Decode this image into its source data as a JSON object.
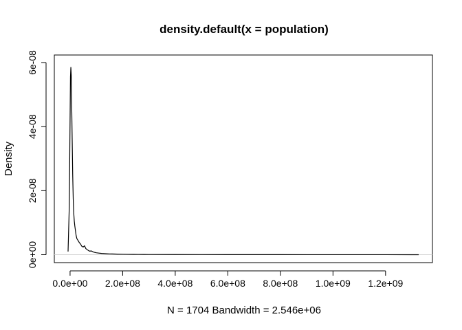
{
  "chart_data": {
    "type": "line",
    "title": "density.default(x = population)",
    "xlabel": "N = 1704   Bandwidth = 2.546e+06",
    "ylabel": "Density",
    "xlim": [
      -7637000,
      1326000000
    ],
    "ylim": [
      0,
      6e-08
    ],
    "x_ticks": [
      {
        "value": 0,
        "label": "0.0e+00"
      },
      {
        "value": 200000000,
        "label": "2.0e+08"
      },
      {
        "value": 400000000,
        "label": "4.0e+08"
      },
      {
        "value": 600000000,
        "label": "6.0e+08"
      },
      {
        "value": 800000000,
        "label": "8.0e+08"
      },
      {
        "value": 1000000000,
        "label": "1.0e+09"
      },
      {
        "value": 1200000000,
        "label": "1.2e+09"
      }
    ],
    "y_ticks": [
      {
        "value": 0,
        "label": "0e+00"
      },
      {
        "value": 2e-08,
        "label": "2e-08"
      },
      {
        "value": 4e-08,
        "label": "4e-08"
      },
      {
        "value": 6e-08,
        "label": "6e-08"
      }
    ],
    "series": [
      {
        "x": [
          -7637000,
          -3000000,
          0,
          1500000,
          3000000,
          4500000,
          6000000,
          8000000,
          10000000,
          12000000,
          14000000,
          16000000,
          18000000,
          20000000,
          23000000,
          26000000,
          30000000,
          35000000,
          40000000,
          45000000,
          50000000,
          55000000,
          60000000,
          65000000,
          70000000,
          75000000,
          80000000,
          90000000,
          100000000,
          110000000,
          120000000,
          130000000,
          140000000,
          150000000,
          160000000,
          180000000,
          200000000,
          220000000,
          240000000,
          260000000,
          280000000,
          300000000,
          400000000,
          500000000,
          600000000,
          700000000,
          800000000,
          900000000,
          1000000000,
          1100000000,
          1200000000,
          1300000000,
          1326000000
        ],
        "y": [
          1e-09,
          1.5e-08,
          4.2e-08,
          5.55e-08,
          5.85e-08,
          5.6e-08,
          4.8e-08,
          3.6e-08,
          2.5e-08,
          1.75e-08,
          1.3e-08,
          1.05e-08,
          9e-09,
          7.8e-09,
          6e-09,
          5e-09,
          4.5e-09,
          3.8e-09,
          3.3e-09,
          2.6e-09,
          2.4e-09,
          2.8e-09,
          1.9e-09,
          1.6e-09,
          1.3e-09,
          1.1e-09,
          1.2e-09,
          8e-10,
          6e-10,
          5e-10,
          4e-10,
          3.5e-10,
          3e-10,
          2.6e-10,
          2.4e-10,
          1.8e-10,
          1.5e-10,
          1.2e-10,
          1e-10,
          9e-11,
          8e-11,
          7e-11,
          5e-11,
          4e-11,
          3e-11,
          2.5e-11,
          2e-11,
          1.5e-11,
          1.2e-11,
          1e-11,
          1e-11,
          5e-12,
          0
        ]
      }
    ],
    "grid": false,
    "legend": "none"
  }
}
